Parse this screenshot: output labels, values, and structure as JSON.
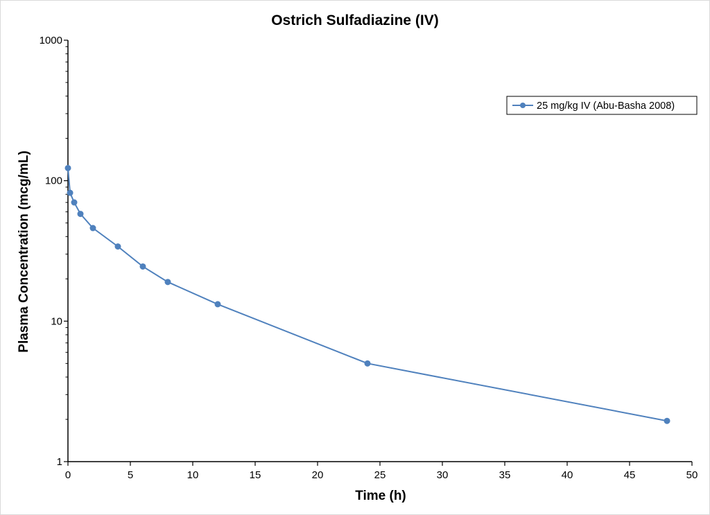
{
  "chart_data": {
    "type": "line",
    "title": "Ostrich Sulfadiazine (IV)",
    "xlabel": "Time (h)",
    "ylabel": "Plasma Concentration (mcg/mL)",
    "xlim": [
      0,
      50
    ],
    "ylim": [
      1,
      1000
    ],
    "yscale": "log",
    "x_ticks": [
      0,
      5,
      10,
      15,
      20,
      25,
      30,
      35,
      40,
      45,
      50
    ],
    "y_ticks": [
      1,
      10,
      100,
      1000
    ],
    "grid": false,
    "legend_position": "top-right",
    "series": [
      {
        "name": "25 mg/kg IV (Abu-Basha 2008)",
        "color": "#4f81bd",
        "marker": "circle",
        "x": [
          0,
          0.17,
          0.5,
          1,
          2,
          4,
          6,
          8,
          12,
          24,
          48
        ],
        "y": [
          123,
          82,
          70,
          58,
          46,
          34,
          24.5,
          19,
          13.2,
          5,
          1.95
        ]
      }
    ]
  }
}
